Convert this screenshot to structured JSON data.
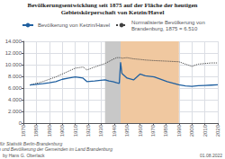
{
  "chart_data": {
    "type": "line",
    "title": "Bevölkerungsentwicklung seit 1875 auf der Fläche der heutigen\nGebietskörperschaft von Ketzin/Havel",
    "series": [
      {
        "name": "Bevölkerung von Ketzin/Havel",
        "color": "#2060a0",
        "line_style": "solid",
        "x": [
          1875,
          1880,
          1885,
          1890,
          1895,
          1900,
          1905,
          1910,
          1916,
          1919,
          1925,
          1933,
          1936,
          1939,
          1942,
          1944,
          1945,
          1946,
          1950,
          1955,
          1960,
          1964,
          1971,
          1981,
          1990,
          1995,
          2000,
          2005,
          2010,
          2015,
          2020
        ],
        "values": [
          6510,
          6650,
          6750,
          6900,
          7100,
          7500,
          7700,
          7900,
          7700,
          7100,
          7200,
          7400,
          7200,
          7100,
          6900,
          6800,
          10400,
          8500,
          7700,
          7400,
          8400,
          8100,
          7900,
          7100,
          6550,
          6350,
          6300,
          6400,
          6450,
          6500,
          6550
        ]
      },
      {
        "name": "Normalisierte Bevölkerung von\nBrandenburg, 1875 = 6.510",
        "color": "#404040",
        "line_style": "dotted",
        "x": [
          1875,
          1880,
          1885,
          1890,
          1895,
          1900,
          1905,
          1910,
          1916,
          1919,
          1925,
          1933,
          1939,
          1942,
          1945,
          1946,
          1950,
          1955,
          1960,
          1964,
          1971,
          1981,
          1990,
          1995,
          2000,
          2005,
          2010,
          2015,
          2020
        ],
        "values": [
          6510,
          6800,
          7100,
          7500,
          7900,
          8400,
          8900,
          9400,
          9600,
          9100,
          9600,
          10200,
          10900,
          11200,
          11200,
          11100,
          11200,
          11000,
          10900,
          10800,
          10700,
          10600,
          10500,
          10100,
          9700,
          10100,
          10200,
          10300,
          10300
        ]
      }
    ],
    "spans": [
      {
        "start": 1933,
        "end": 1945,
        "color": "#c8c8c8"
      },
      {
        "start": 1945,
        "end": 1990,
        "color": "#f0c8a0"
      }
    ],
    "xlim": [
      1870,
      2020
    ],
    "xticks": [
      1870,
      1880,
      1890,
      1900,
      1910,
      1920,
      1930,
      1940,
      1950,
      1960,
      1970,
      1980,
      1990,
      2000,
      2010,
      2020
    ],
    "ylim": [
      0,
      14000
    ],
    "yticks": [
      0,
      {
        "value": 2000,
        "label": "2.000"
      },
      {
        "value": 4000,
        "label": "4.000"
      },
      {
        "value": 6000,
        "label": "6.000"
      },
      {
        "value": 8000,
        "label": "8.000"
      },
      {
        "value": 10000,
        "label": "10.000"
      },
      {
        "value": 12000,
        "label": "12.000"
      },
      {
        "value": 14000,
        "label": "14.000"
      }
    ],
    "grid": true,
    "legend": "upper left",
    "source": "Quellen: Amt für Statistik Berlin-Brandenburg\nHistorische Gemeindeeinwohnerzahlen und Bevölkerung der Gemeinden im Land Brandenburg",
    "author": "by Hans G. Oberlack",
    "date": "01.08.2022"
  }
}
